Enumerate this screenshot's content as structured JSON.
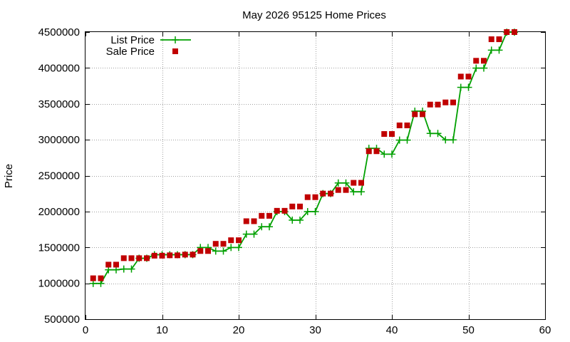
{
  "chart_data": {
    "type": "line",
    "title": "May 2026 95125 Home Prices",
    "xlabel": "",
    "ylabel": "Price",
    "xlim": [
      0,
      60
    ],
    "ylim": [
      500000,
      4500000
    ],
    "x_ticks": [
      0,
      10,
      20,
      30,
      40,
      50,
      60
    ],
    "y_ticks": [
      500000,
      1000000,
      1500000,
      2000000,
      2500000,
      3000000,
      3500000,
      4000000,
      4500000
    ],
    "grid": true,
    "legend_position": "top-left",
    "series": [
      {
        "name": "List Price",
        "style": "line-cross",
        "color": "#00a000",
        "points": [
          [
            1,
            998000
          ],
          [
            2,
            998000
          ],
          [
            3,
            1188000
          ],
          [
            4,
            1188000
          ],
          [
            5,
            1199000
          ],
          [
            6,
            1199000
          ],
          [
            7,
            1349000
          ],
          [
            8,
            1349000
          ],
          [
            9,
            1398000
          ],
          [
            10,
            1398000
          ],
          [
            11,
            1398000
          ],
          [
            12,
            1398000
          ],
          [
            13,
            1399000
          ],
          [
            14,
            1399000
          ],
          [
            15,
            1499000
          ],
          [
            16,
            1499000
          ],
          [
            17,
            1449000
          ],
          [
            18,
            1449000
          ],
          [
            19,
            1499000
          ],
          [
            20,
            1499000
          ],
          [
            21,
            1685000
          ],
          [
            22,
            1685000
          ],
          [
            23,
            1788000
          ],
          [
            24,
            1788000
          ],
          [
            25,
            1999000
          ],
          [
            26,
            1999000
          ],
          [
            27,
            1880000
          ],
          [
            28,
            1880000
          ],
          [
            29,
            1999000
          ],
          [
            30,
            1999000
          ],
          [
            31,
            2250000
          ],
          [
            32,
            2250000
          ],
          [
            33,
            2398000
          ],
          [
            34,
            2398000
          ],
          [
            35,
            2275000
          ],
          [
            36,
            2275000
          ],
          [
            37,
            2880000
          ],
          [
            38,
            2880000
          ],
          [
            39,
            2799000
          ],
          [
            40,
            2799000
          ],
          [
            41,
            2995000
          ],
          [
            42,
            2995000
          ],
          [
            43,
            3398000
          ],
          [
            44,
            3398000
          ],
          [
            45,
            3088000
          ],
          [
            46,
            3088000
          ],
          [
            47,
            2998000
          ],
          [
            48,
            2998000
          ],
          [
            49,
            3730000
          ],
          [
            50,
            3730000
          ],
          [
            51,
            3998000
          ],
          [
            52,
            3998000
          ],
          [
            53,
            4248000
          ],
          [
            54,
            4248000
          ],
          [
            55,
            4498000
          ],
          [
            56,
            4498000
          ]
        ]
      },
      {
        "name": "Sale Price",
        "style": "square-points",
        "color": "#c00000",
        "points": [
          [
            1,
            1070000
          ],
          [
            2,
            1070000
          ],
          [
            3,
            1260000
          ],
          [
            4,
            1260000
          ],
          [
            5,
            1350000
          ],
          [
            6,
            1350000
          ],
          [
            7,
            1350000
          ],
          [
            8,
            1350000
          ],
          [
            9,
            1385000
          ],
          [
            10,
            1385000
          ],
          [
            11,
            1390000
          ],
          [
            12,
            1390000
          ],
          [
            13,
            1400000
          ],
          [
            14,
            1400000
          ],
          [
            15,
            1450000
          ],
          [
            16,
            1450000
          ],
          [
            17,
            1550000
          ],
          [
            18,
            1550000
          ],
          [
            19,
            1600000
          ],
          [
            20,
            1600000
          ],
          [
            21,
            1865000
          ],
          [
            22,
            1865000
          ],
          [
            23,
            1940000
          ],
          [
            24,
            1940000
          ],
          [
            25,
            2010000
          ],
          [
            26,
            2010000
          ],
          [
            27,
            2070000
          ],
          [
            28,
            2070000
          ],
          [
            29,
            2200000
          ],
          [
            30,
            2200000
          ],
          [
            31,
            2250000
          ],
          [
            32,
            2250000
          ],
          [
            33,
            2300000
          ],
          [
            34,
            2300000
          ],
          [
            35,
            2400000
          ],
          [
            36,
            2400000
          ],
          [
            37,
            2840000
          ],
          [
            38,
            2840000
          ],
          [
            39,
            3080000
          ],
          [
            40,
            3080000
          ],
          [
            41,
            3200000
          ],
          [
            42,
            3200000
          ],
          [
            43,
            3355000
          ],
          [
            44,
            3355000
          ],
          [
            45,
            3490000
          ],
          [
            46,
            3490000
          ],
          [
            47,
            3520000
          ],
          [
            48,
            3520000
          ],
          [
            49,
            3880000
          ],
          [
            50,
            3880000
          ],
          [
            51,
            4100000
          ],
          [
            52,
            4100000
          ],
          [
            53,
            4400000
          ],
          [
            54,
            4400000
          ],
          [
            55,
            4500000
          ],
          [
            56,
            4500000
          ]
        ]
      }
    ]
  }
}
